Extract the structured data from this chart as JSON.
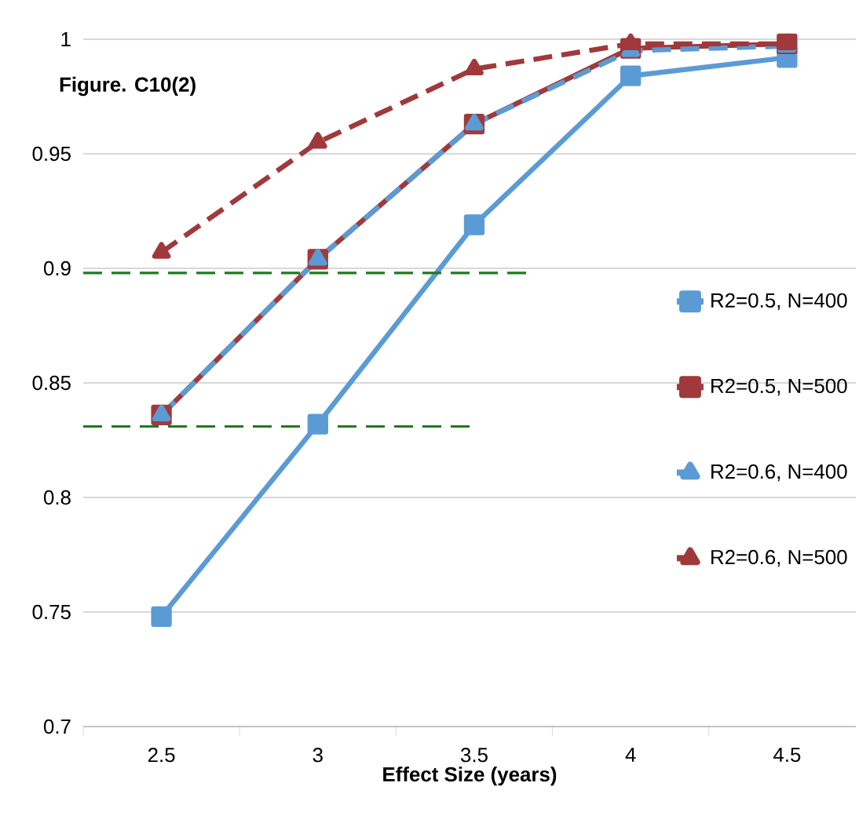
{
  "chart_data": {
    "type": "line",
    "xlabel": "Effect Size (years)",
    "annotations": [
      "Figure. C10(2)"
    ],
    "x": [
      2.5,
      3,
      3.5,
      4,
      4.5
    ],
    "series": [
      {
        "name": "R2=0.5, N=400",
        "color": "#5b9bd5",
        "values": [
          0.748,
          0.832,
          0.919,
          0.984,
          0.992
        ],
        "marker": "square",
        "line_style": "solid"
      },
      {
        "name": "R2=0.5, N=500",
        "color": "#a0393b",
        "values": [
          0.836,
          0.904,
          0.963,
          0.996,
          0.998
        ],
        "marker": "square",
        "line_style": "solid"
      },
      {
        "name": "R2=0.6, N=400",
        "color": "#5b9bd5",
        "values": [
          0.836,
          0.904,
          0.963,
          0.995,
          0.997
        ],
        "marker": "triangle",
        "line_style": "dashed"
      },
      {
        "name": "R2=0.6, N=500",
        "color": "#a0393b",
        "values": [
          0.907,
          0.955,
          0.987,
          0.998,
          0.998
        ],
        "marker": "triangle",
        "line_style": "dashed"
      },
      {
        "color": "#1e7b1e",
        "x": [
          2.25,
          3.68
        ],
        "values": [
          0.898,
          0.898
        ],
        "marker": "none",
        "line_style": "dashed"
      },
      {
        "color": "#1e7b1e",
        "x": [
          2.25,
          3.5
        ],
        "values": [
          0.831,
          0.831
        ],
        "marker": "none",
        "line_style": "dashed"
      }
    ],
    "xlim": [
      2.25,
      4.72
    ],
    "xticks": [
      2.5,
      3,
      3.5,
      4,
      4.5
    ],
    "ylim": [
      0.7,
      1
    ],
    "yticks": [
      0.7,
      0.75,
      0.8,
      0.85,
      0.9,
      0.95,
      1
    ],
    "grid": "y",
    "legend": "right"
  }
}
